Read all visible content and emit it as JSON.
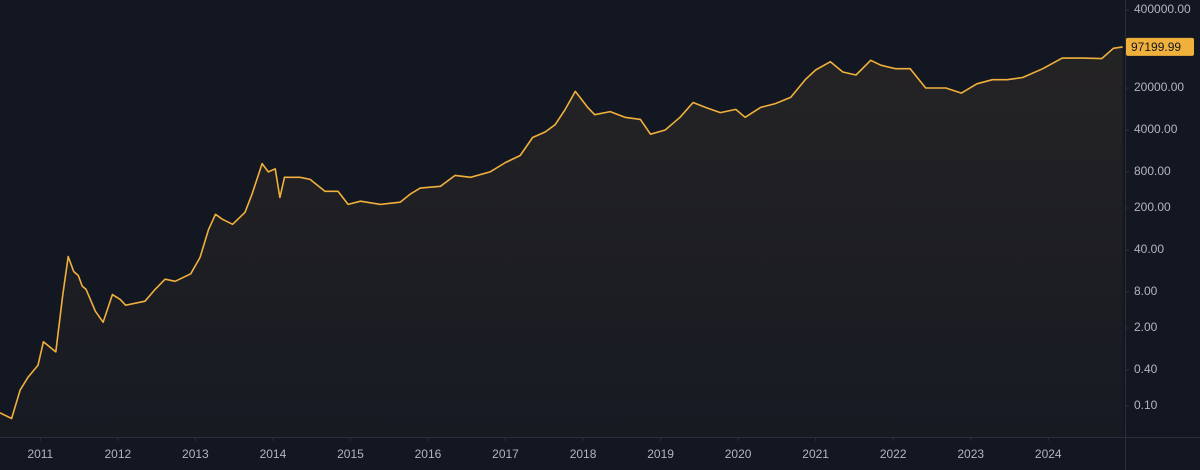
{
  "chart_data": {
    "type": "area",
    "x": [
      2010.48,
      2010.63,
      2010.74,
      2010.84,
      2010.97,
      2011.04,
      2011.2,
      2011.29,
      2011.36,
      2011.43,
      2011.49,
      2011.54,
      2011.59,
      2011.71,
      2011.81,
      2011.93,
      2012.03,
      2012.1,
      2012.35,
      2012.48,
      2012.61,
      2012.74,
      2012.94,
      2013.06,
      2013.17,
      2013.26,
      2013.35,
      2013.48,
      2013.64,
      2013.73,
      2013.86,
      2013.94,
      2014.03,
      2014.09,
      2014.15,
      2014.35,
      2014.48,
      2014.67,
      2014.84,
      2014.97,
      2015.13,
      2015.39,
      2015.64,
      2015.77,
      2015.9,
      2016.16,
      2016.35,
      2016.55,
      2016.8,
      2017.0,
      2017.19,
      2017.35,
      2017.51,
      2017.64,
      2017.77,
      2017.9,
      2017.96,
      2018.06,
      2018.15,
      2018.35,
      2018.54,
      2018.74,
      2018.87,
      2019.06,
      2019.25,
      2019.42,
      2019.58,
      2019.77,
      2019.97,
      2020.09,
      2020.29,
      2020.48,
      2020.68,
      2020.87,
      2021.0,
      2021.19,
      2021.35,
      2021.52,
      2021.71,
      2021.84,
      2022.03,
      2022.22,
      2022.42,
      2022.68,
      2022.88,
      2023.08,
      2023.28,
      2023.47,
      2023.67,
      2023.93,
      2024.18,
      2024.44,
      2024.69,
      2024.84,
      2024.96
    ],
    "values": [
      0.077,
      0.062,
      0.186,
      0.3,
      0.48,
      1.18,
      0.8,
      7.2,
      31,
      17.5,
      15,
      10,
      8.8,
      3.8,
      2.5,
      7.2,
      6,
      4.8,
      5.6,
      8.8,
      13,
      12,
      16,
      30,
      88,
      157,
      130,
      107,
      170,
      340,
      1100,
      800,
      900,
      300,
      650,
      650,
      600,
      380,
      380,
      230,
      260,
      230,
      250,
      340,
      430,
      460,
      700,
      650,
      800,
      1150,
      1500,
      3000,
      3700,
      4900,
      8800,
      17600,
      14000,
      9500,
      7200,
      8100,
      6500,
      6000,
      3400,
      4000,
      6500,
      11500,
      9500,
      7800,
      8800,
      6500,
      9500,
      11000,
      14000,
      28000,
      40000,
      55000,
      37000,
      33000,
      58000,
      48000,
      42000,
      42000,
      20000,
      20000,
      16500,
      23500,
      27500,
      27500,
      30000,
      42000,
      63000,
      63000,
      62000,
      92000,
      97199.99
    ],
    "color": "#f0b03c",
    "log_y": true,
    "grid": false,
    "y_axis_side": "right",
    "xlim": [
      2010.48,
      2024.99
    ],
    "xticks": [
      2011,
      2012,
      2013,
      2014,
      2015,
      2016,
      2017,
      2018,
      2019,
      2020,
      2021,
      2022,
      2023,
      2024
    ],
    "ylim": [
      0.0305,
      587000
    ],
    "yticks": [
      {
        "value": 400000,
        "label": "400000.00"
      },
      {
        "value": 20000,
        "label": "20000.00"
      },
      {
        "value": 4000,
        "label": "4000.00"
      },
      {
        "value": 800,
        "label": "800.00"
      },
      {
        "value": 200,
        "label": "200.00"
      },
      {
        "value": 40,
        "label": "40.00"
      },
      {
        "value": 8,
        "label": "8.00"
      },
      {
        "value": 2,
        "label": "2.00"
      },
      {
        "value": 0.4,
        "label": "0.40"
      },
      {
        "value": 0.1,
        "label": "0.10"
      }
    ]
  }
}
